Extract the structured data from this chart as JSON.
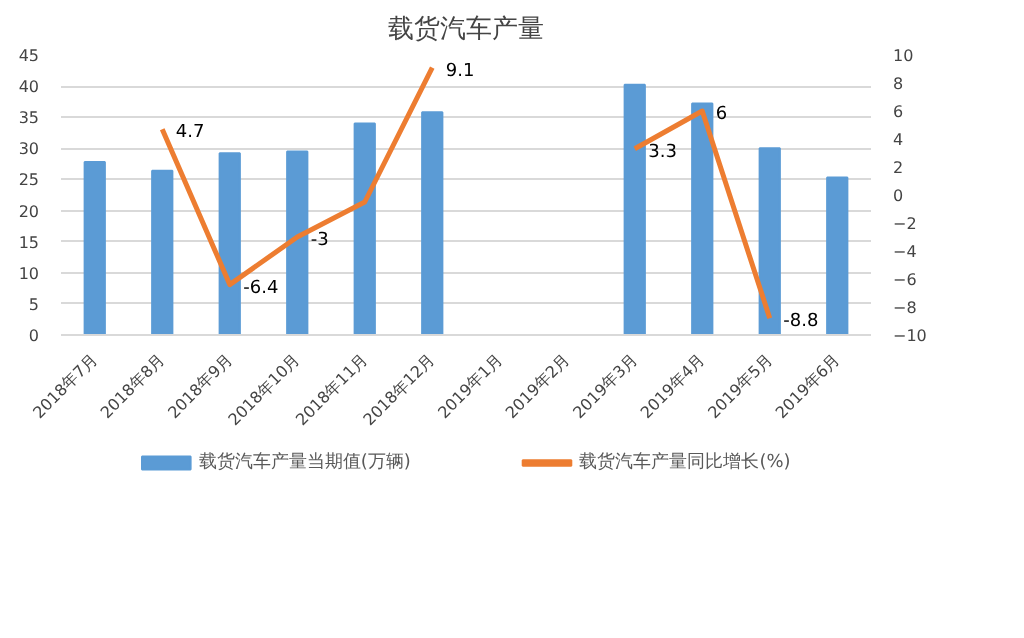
{
  "chart_data": {
    "type": "bar",
    "title": "载货汽车产量",
    "categories": [
      "2018年7月",
      "2018年8月",
      "2018年9月",
      "2018年10月",
      "2018年11月",
      "2018年12月",
      "2019年1月",
      "2019年2月",
      "2019年3月",
      "2019年4月",
      "2019年5月",
      "2019年6月"
    ],
    "series": [
      {
        "name": "载货汽车产量当期值(万辆)",
        "color": "#5b9bd5",
        "values": [
          27.8,
          26.4,
          29.2,
          29.5,
          34,
          35.8,
          null,
          null,
          40.2,
          37.2,
          30,
          25.3
        ]
      },
      {
        "name": "载货汽车产量同比增长(%)",
        "type": "line",
        "axis": "y2",
        "color": "#ed7d31",
        "values": [
          null,
          4.7,
          -6.4,
          -3,
          -0.5,
          9.1,
          null,
          null,
          3.3,
          6,
          -8.8,
          null
        ],
        "value_labels": [
          null,
          "4.7",
          "-6.4",
          "-3",
          null,
          "9.1",
          null,
          null,
          "3.3",
          "6",
          "-8.8",
          null
        ]
      }
    ],
    "ylim": [
      0,
      45
    ],
    "yticks": [
      0,
      5,
      10,
      15,
      20,
      25,
      30,
      35,
      40,
      45
    ],
    "y2lim": [
      -10,
      10
    ],
    "y2ticks": [
      -10,
      -8,
      -6,
      -4,
      -2,
      0,
      2,
      4,
      6,
      8,
      10
    ],
    "grid": "y",
    "legend": "bottom"
  }
}
